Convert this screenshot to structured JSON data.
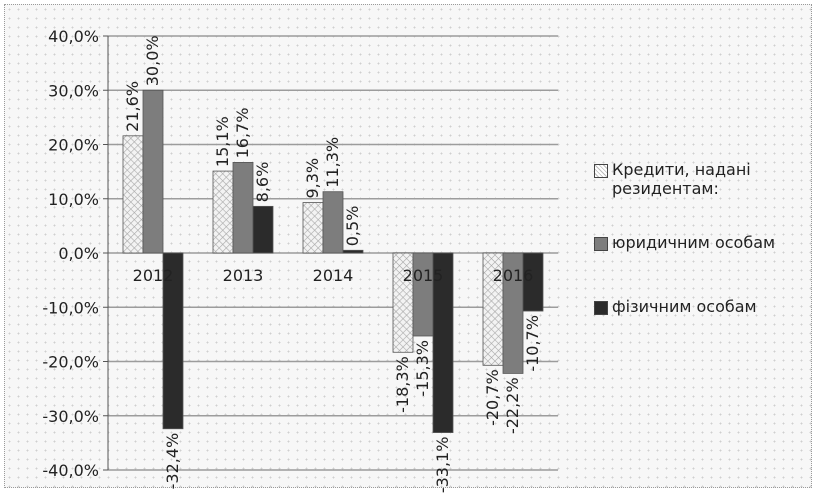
{
  "chart_data": {
    "type": "bar",
    "categories": [
      "2012",
      "2013",
      "2014",
      "2015",
      "2016"
    ],
    "ylim": [
      -40,
      40
    ],
    "yticks": [
      "40,0%",
      "30,0%",
      "20,0%",
      "10,0%",
      "0,0%",
      "-10,0%",
      "-20,0%",
      "-30,0%",
      "-40,0%"
    ],
    "ytick_values": [
      40,
      30,
      20,
      10,
      0,
      -10,
      -20,
      -30,
      -40
    ],
    "grid": true,
    "legend_position": "right",
    "series": [
      {
        "name": "Кредити, надані резидентам:",
        "legend_lines": [
          "Кредити, надані",
          "резидентам:"
        ],
        "values": [
          21.6,
          15.1,
          9.3,
          -18.3,
          -20.7
        ],
        "labels": [
          "21,6%",
          "15,1%",
          "9,3%",
          "-18,3%",
          "-20,7%"
        ],
        "color": "#ececec"
      },
      {
        "name": "юридичним особам",
        "legend_lines": [
          "юридичним особам"
        ],
        "values": [
          30.0,
          16.7,
          11.3,
          -15.3,
          -22.2
        ],
        "labels": [
          "30,0%",
          "16,7%",
          "11,3%",
          "-15,3%",
          "-22,2%"
        ],
        "color": "#7d7d7d"
      },
      {
        "name": "фізичним особам",
        "legend_lines": [
          "фізичним особам"
        ],
        "values": [
          -32.4,
          8.6,
          0.5,
          -33.1,
          -10.7
        ],
        "labels": [
          "-32,4%",
          "8,6%",
          "0,5%",
          "-33,1%",
          "-10,7%"
        ],
        "color": "#2b2b2b"
      }
    ]
  }
}
